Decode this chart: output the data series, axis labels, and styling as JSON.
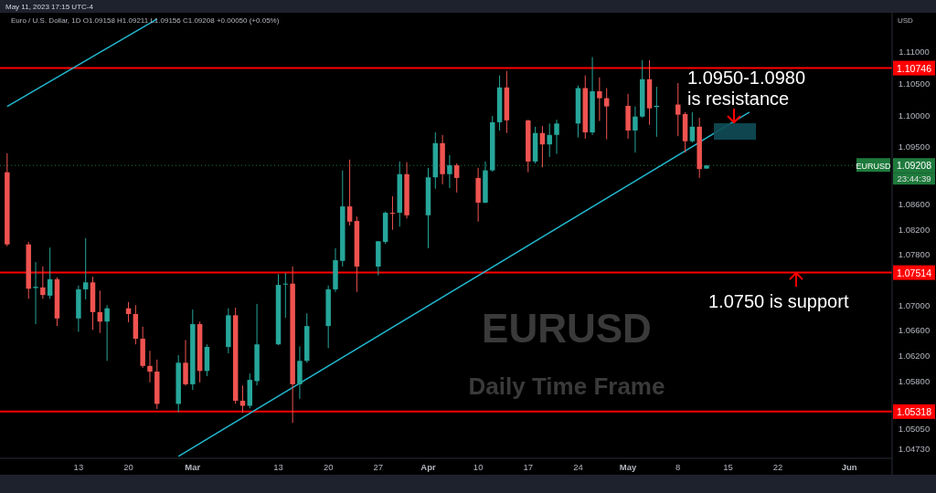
{
  "chart_data": {
    "type": "candlestick",
    "title": "EURUSD",
    "subtitle": "Daily Time Frame",
    "ylabel": "USD",
    "x": [
      "2023-02-03",
      "2023-02-06",
      "2023-02-07",
      "2023-02-08",
      "2023-02-09",
      "2023-02-10",
      "2023-02-13",
      "2023-02-14",
      "2023-02-15",
      "2023-02-16",
      "2023-02-17",
      "2023-02-20",
      "2023-02-21",
      "2023-02-22",
      "2023-02-23",
      "2023-02-24",
      "2023-02-27",
      "2023-02-28",
      "2023-03-01",
      "2023-03-02",
      "2023-03-03",
      "2023-03-06",
      "2023-03-07",
      "2023-03-08",
      "2023-03-09",
      "2023-03-10",
      "2023-03-13",
      "2023-03-14",
      "2023-03-15",
      "2023-03-16",
      "2023-03-17",
      "2023-03-20",
      "2023-03-21",
      "2023-03-22",
      "2023-03-23",
      "2023-03-24",
      "2023-03-27",
      "2023-03-28",
      "2023-03-29",
      "2023-03-30",
      "2023-03-31",
      "2023-04-03",
      "2023-04-04",
      "2023-04-05",
      "2023-04-06",
      "2023-04-07",
      "2023-04-10",
      "2023-04-11",
      "2023-04-12",
      "2023-04-13",
      "2023-04-14",
      "2023-04-17",
      "2023-04-18",
      "2023-04-19",
      "2023-04-20",
      "2023-04-21",
      "2023-04-24",
      "2023-04-25",
      "2023-04-26",
      "2023-04-27",
      "2023-04-28",
      "2023-05-01",
      "2023-05-02",
      "2023-05-03",
      "2023-05-04",
      "2023-05-05",
      "2023-05-08",
      "2023-05-09",
      "2023-05-10",
      "2023-05-11",
      "2023-05-12"
    ],
    "ohlc": [
      [
        1.091,
        1.094,
        1.0793,
        1.0796
      ],
      [
        1.0796,
        1.08,
        1.071,
        1.0726
      ],
      [
        1.0727,
        1.0768,
        1.067,
        1.0729
      ],
      [
        1.0728,
        1.0761,
        1.071,
        1.0716
      ],
      [
        1.0715,
        1.0791,
        1.071,
        1.0741
      ],
      [
        1.0741,
        1.0744,
        1.0667,
        1.0679
      ],
      [
        1.0679,
        1.0731,
        1.0658,
        1.0725
      ],
      [
        1.0725,
        1.0806,
        1.0709,
        1.0736
      ],
      [
        1.0736,
        1.0745,
        1.0661,
        1.0689
      ],
      [
        1.0689,
        1.0723,
        1.0656,
        1.0674
      ],
      [
        1.0674,
        1.07,
        1.0612,
        1.0695
      ],
      [
        1.0695,
        1.0705,
        1.0673,
        1.0686
      ],
      [
        1.0686,
        1.07,
        1.0638,
        1.0647
      ],
      [
        1.0647,
        1.0666,
        1.0601,
        1.0604
      ],
      [
        1.0604,
        1.0628,
        1.0578,
        1.0595
      ],
      [
        1.0595,
        1.0614,
        1.0536,
        1.0544
      ],
      [
        1.0544,
        1.0621,
        1.0531,
        1.0609
      ],
      [
        1.0609,
        1.0645,
        1.0573,
        1.0575
      ],
      [
        1.0575,
        1.0693,
        1.0566,
        1.067
      ],
      [
        1.067,
        1.0674,
        1.0578,
        1.0596
      ],
      [
        1.0596,
        1.0638,
        1.0588,
        1.0634
      ],
      [
        1.0634,
        1.0695,
        1.0624,
        1.0684
      ],
      [
        1.0684,
        1.0696,
        1.0544,
        1.0549
      ],
      [
        1.0549,
        1.0573,
        1.053,
        1.0541
      ],
      [
        1.0541,
        1.0592,
        1.0537,
        1.0582
      ],
      [
        1.058,
        1.0702,
        1.0573,
        1.0638
      ],
      [
        1.0638,
        1.0749,
        1.0637,
        1.0732
      ],
      [
        1.0733,
        1.0751,
        1.068,
        1.0734
      ],
      [
        1.0734,
        1.0761,
        1.0514,
        1.0575
      ],
      [
        1.0575,
        1.0635,
        1.0552,
        1.0612
      ],
      [
        1.0612,
        1.0687,
        1.0609,
        1.0667
      ],
      [
        1.0667,
        1.0731,
        1.0632,
        1.0725
      ],
      [
        1.0725,
        1.079,
        1.0721,
        1.0771
      ],
      [
        1.077,
        1.0913,
        1.0761,
        1.0856
      ],
      [
        1.0856,
        1.093,
        1.0826,
        1.0832
      ],
      [
        1.0833,
        1.084,
        1.0721,
        1.0761
      ],
      [
        1.0761,
        1.0801,
        1.0747,
        1.0801
      ],
      [
        1.08,
        1.0848,
        1.0797,
        1.0846
      ],
      [
        1.0846,
        1.0872,
        1.0819,
        1.0845
      ],
      [
        1.0846,
        1.0927,
        1.0824,
        1.0907
      ],
      [
        1.0907,
        1.0926,
        1.0837,
        1.0842
      ],
      [
        1.0842,
        1.0917,
        1.079,
        1.0902
      ],
      [
        1.0902,
        1.0973,
        1.0884,
        1.0956
      ],
      [
        1.0956,
        1.0969,
        1.0891,
        1.0907
      ],
      [
        1.0907,
        1.0937,
        1.0885,
        1.0921
      ],
      [
        1.0921,
        1.0924,
        1.0878,
        1.0901
      ],
      [
        1.0901,
        1.0917,
        1.0832,
        1.0862
      ],
      [
        1.0862,
        1.0927,
        1.0861,
        1.0913
      ],
      [
        1.0913,
        1.0999,
        1.0911,
        1.0989
      ],
      [
        1.0989,
        1.1063,
        1.0976,
        1.1044
      ],
      [
        1.1044,
        1.107,
        1.0972,
        1.0992
      ],
      [
        1.0992,
        1.0993,
        1.091,
        1.0927
      ],
      [
        1.0927,
        1.0982,
        1.0924,
        1.0972
      ],
      [
        1.0972,
        1.0983,
        1.0918,
        1.0954
      ],
      [
        1.0954,
        1.0987,
        1.0934,
        1.0969
      ],
      [
        1.0969,
        1.0993,
        1.0939,
        1.0987
      ],
      [
        1.0987,
        1.1047,
        1.0965,
        1.1043
      ],
      [
        1.1043,
        1.1063,
        1.0963,
        1.0973
      ],
      [
        1.0973,
        1.1092,
        1.0969,
        1.1038
      ],
      [
        1.1038,
        1.106,
        1.0991,
        1.1027
      ],
      [
        1.1027,
        1.1043,
        1.0962,
        1.1014
      ],
      [
        1.1015,
        1.1034,
        1.0963,
        1.0976
      ],
      [
        1.0976,
        1.1014,
        1.0941,
        1.0998
      ],
      [
        1.0998,
        1.1087,
        1.0996,
        1.1057
      ],
      [
        1.1057,
        1.1087,
        1.0985,
        1.1011
      ],
      [
        1.1013,
        1.1045,
        1.0966,
        1.1015
      ],
      [
        1.1017,
        1.1051,
        1.0967,
        1.1001
      ],
      [
        1.1002,
        1.1005,
        1.0941,
        1.0959
      ],
      [
        1.0959,
        1.1005,
        1.0957,
        1.0982
      ],
      [
        1.0982,
        1.0996,
        1.0901,
        1.0915
      ],
      [
        1.09158,
        1.09211,
        1.09156,
        1.09208
      ]
    ],
    "series": [
      {
        "type": "line",
        "color": "#22b8cf",
        "x": [
          "2023-02-27",
          "2023-05-18"
        ],
        "values": [
          1.0461,
          1.1005
        ]
      },
      {
        "type": "line",
        "color": "#22b8cf",
        "x": [
          "2023-02-03",
          "2023-02-24"
        ],
        "values": [
          1.1014,
          1.1152
        ]
      }
    ],
    "xlim": [
      "2023-02-02",
      "2023-06-07"
    ],
    "xticks": [
      {
        "value": "2023-02-13",
        "label": "13"
      },
      {
        "value": "2023-02-20",
        "label": "20"
      },
      {
        "value": "2023-03-01",
        "label": "Mar"
      },
      {
        "value": "2023-03-13",
        "label": "13"
      },
      {
        "value": "2023-03-20",
        "label": "20"
      },
      {
        "value": "2023-03-27",
        "label": "27"
      },
      {
        "value": "2023-04-03",
        "label": "Apr"
      },
      {
        "value": "2023-04-10",
        "label": "10"
      },
      {
        "value": "2023-04-17",
        "label": "17"
      },
      {
        "value": "2023-04-24",
        "label": "24"
      },
      {
        "value": "2023-05-01",
        "label": "May"
      },
      {
        "value": "2023-05-08",
        "label": "8"
      },
      {
        "value": "2023-05-15",
        "label": "15"
      },
      {
        "value": "2023-05-22",
        "label": "22"
      },
      {
        "value": "2023-06-01",
        "label": "Jun"
      }
    ],
    "ylim": [
      1.0458,
      1.1162
    ],
    "yticks": [
      {
        "value": 1.11,
        "label": "1.11000"
      },
      {
        "value": 1.105,
        "label": "1.10500"
      },
      {
        "value": 1.1,
        "label": "1.10000"
      },
      {
        "value": 1.095,
        "label": "1.09500"
      },
      {
        "value": 1.086,
        "label": "1.08600"
      },
      {
        "value": 1.082,
        "label": "1.08200"
      },
      {
        "value": 1.078,
        "label": "1.07800"
      },
      {
        "value": 1.07,
        "label": "1.07000"
      },
      {
        "value": 1.066,
        "label": "1.06600"
      },
      {
        "value": 1.062,
        "label": "1.06200"
      },
      {
        "value": 1.058,
        "label": "1.05800"
      },
      {
        "value": 1.0505,
        "label": "1.05050"
      },
      {
        "value": 1.0473,
        "label": "1.04730"
      }
    ],
    "ref_lines": [
      {
        "axis": "y",
        "value": 1.10746,
        "label": "1.10746",
        "color": "#ff0000"
      },
      {
        "axis": "y",
        "value": 1.07514,
        "label": "1.07514",
        "color": "#ff0000"
      },
      {
        "axis": "y",
        "value": 1.05318,
        "label": "1.05318",
        "color": "#ff0000"
      },
      {
        "axis": "y",
        "value": 1.09208,
        "label": "1.09208",
        "color": "#1e7a3c",
        "line_style": "dotted"
      }
    ],
    "annotations": [
      "May 11, 2023 17:15 UTC-4",
      "Euro / U.S. Dollar, 1D O1.09158 H1.09211 L1.09156 C1.09208 +0.00050 (+0.05%)",
      "1.0950-1.0980 is resistance",
      "1.0750 is support",
      "EURUSD",
      "23:44:39"
    ],
    "tick_labels": "xy"
  }
}
